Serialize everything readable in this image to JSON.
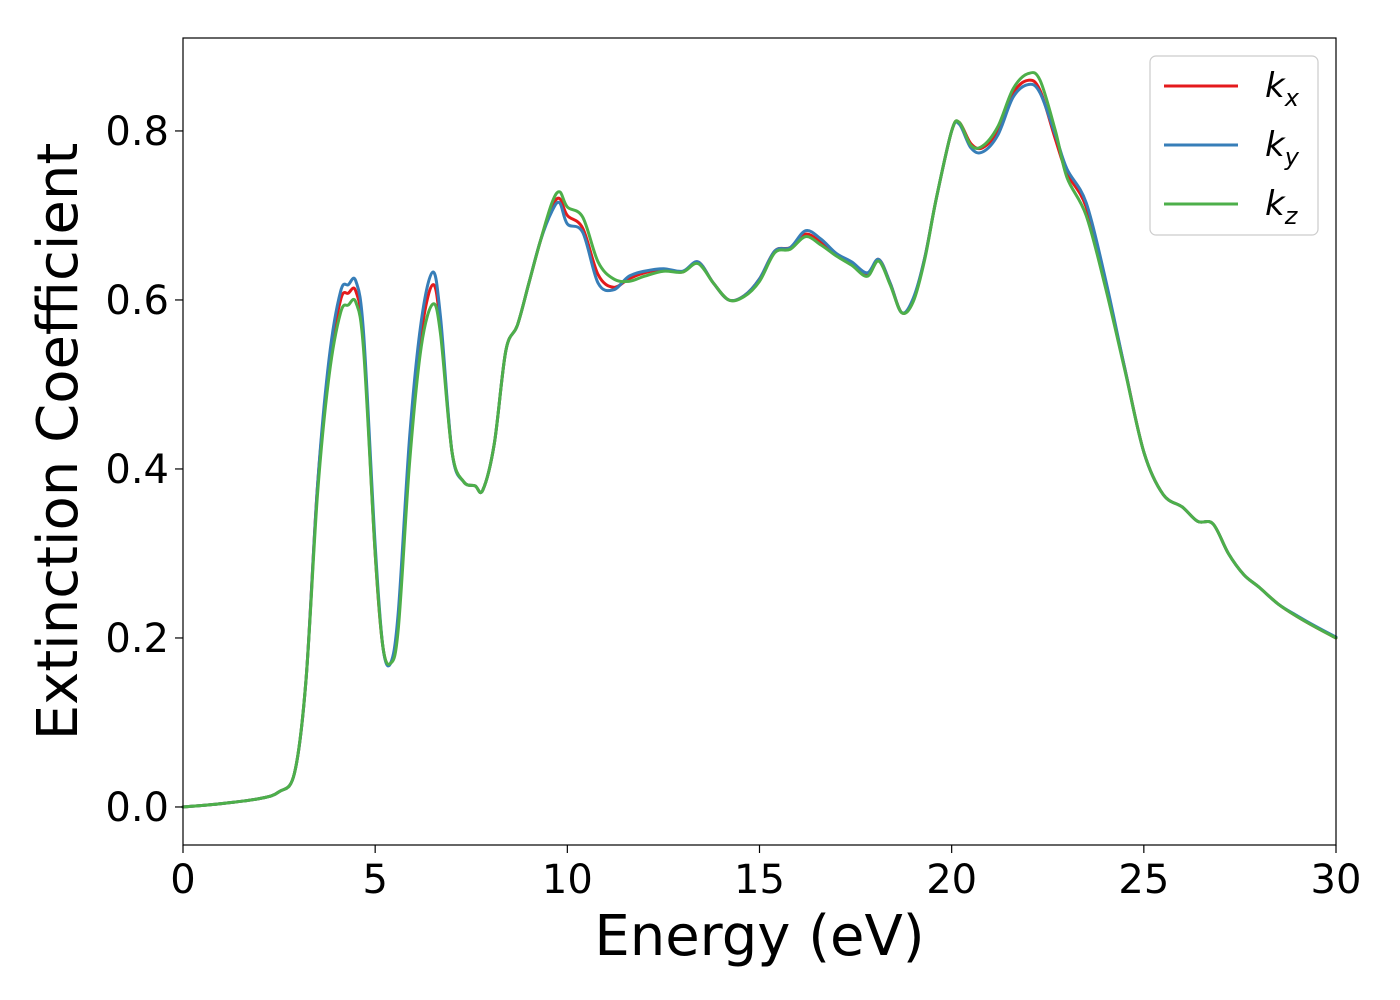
{
  "chart_data": {
    "type": "line",
    "xlabel": "Energy (eV)",
    "ylabel": "Extinction Coefficient",
    "xlim": [
      0,
      30
    ],
    "ylim": [
      -0.045,
      0.91
    ],
    "xticks": [
      0,
      5,
      10,
      15,
      20,
      25,
      30
    ],
    "xtick_labels": [
      "0",
      "5",
      "10",
      "15",
      "20",
      "25",
      "30"
    ],
    "yticks": [
      0.0,
      0.2,
      0.4,
      0.6,
      0.8
    ],
    "ytick_labels": [
      "0.0",
      "0.2",
      "0.4",
      "0.6",
      "0.8"
    ],
    "grid": false,
    "legend_position": "top-right",
    "series": [
      {
        "name": "kx",
        "legend_base": "k",
        "legend_sub": "x",
        "color": "#e41a1c",
        "x": [
          0,
          1,
          2,
          2.5,
          2.9,
          3.2,
          3.5,
          3.8,
          4.1,
          4.3,
          4.5,
          4.7,
          5.0,
          5.2,
          5.4,
          5.6,
          5.9,
          6.2,
          6.5,
          6.7,
          7.0,
          7.3,
          7.6,
          7.8,
          8.1,
          8.4,
          8.7,
          9.0,
          9.3,
          9.6,
          9.8,
          10.0,
          10.4,
          10.8,
          11.2,
          11.6,
          12.0,
          12.5,
          13.0,
          13.4,
          13.8,
          14.2,
          14.6,
          15.0,
          15.4,
          15.8,
          16.2,
          16.6,
          17.0,
          17.4,
          17.8,
          18.1,
          18.4,
          18.7,
          19.0,
          19.3,
          19.6,
          20.0,
          20.2,
          20.5,
          20.8,
          21.2,
          21.6,
          22.0,
          22.3,
          22.7,
          23.0,
          23.5,
          24.0,
          24.5,
          25.0,
          25.5,
          26.0,
          26.4,
          26.8,
          27.2,
          27.6,
          28.0,
          28.5,
          29.0,
          29.5,
          30.0
        ],
        "y": [
          0.0,
          0.004,
          0.01,
          0.018,
          0.04,
          0.15,
          0.38,
          0.52,
          0.6,
          0.608,
          0.61,
          0.55,
          0.3,
          0.19,
          0.17,
          0.22,
          0.42,
          0.56,
          0.618,
          0.57,
          0.42,
          0.385,
          0.38,
          0.375,
          0.43,
          0.54,
          0.57,
          0.62,
          0.67,
          0.71,
          0.72,
          0.7,
          0.685,
          0.63,
          0.615,
          0.625,
          0.632,
          0.636,
          0.633,
          0.645,
          0.62,
          0.6,
          0.605,
          0.625,
          0.658,
          0.662,
          0.678,
          0.668,
          0.653,
          0.643,
          0.63,
          0.648,
          0.62,
          0.585,
          0.6,
          0.65,
          0.72,
          0.8,
          0.81,
          0.785,
          0.78,
          0.8,
          0.845,
          0.86,
          0.848,
          0.79,
          0.75,
          0.71,
          0.62,
          0.52,
          0.42,
          0.37,
          0.355,
          0.338,
          0.335,
          0.3,
          0.275,
          0.26,
          0.24,
          0.225,
          0.212,
          0.2
        ]
      },
      {
        "name": "ky",
        "legend_base": "k",
        "legend_sub": "y",
        "color": "#377eb8",
        "x": [
          0,
          1,
          2,
          2.5,
          2.9,
          3.2,
          3.5,
          3.8,
          4.1,
          4.3,
          4.5,
          4.7,
          5.0,
          5.2,
          5.4,
          5.6,
          5.9,
          6.2,
          6.5,
          6.7,
          7.0,
          7.3,
          7.6,
          7.8,
          8.1,
          8.4,
          8.7,
          9.0,
          9.3,
          9.6,
          9.8,
          10.0,
          10.4,
          10.8,
          11.2,
          11.6,
          12.0,
          12.5,
          13.0,
          13.4,
          13.8,
          14.2,
          14.6,
          15.0,
          15.4,
          15.8,
          16.2,
          16.6,
          17.0,
          17.4,
          17.8,
          18.1,
          18.4,
          18.7,
          19.0,
          19.3,
          19.6,
          20.0,
          20.2,
          20.5,
          20.8,
          21.2,
          21.6,
          22.0,
          22.3,
          22.7,
          23.0,
          23.5,
          24.0,
          24.5,
          25.0,
          25.5,
          26.0,
          26.4,
          26.8,
          27.2,
          27.6,
          28.0,
          28.5,
          29.0,
          29.5,
          30.0
        ],
        "y": [
          0.0,
          0.004,
          0.01,
          0.018,
          0.04,
          0.15,
          0.38,
          0.53,
          0.61,
          0.618,
          0.622,
          0.56,
          0.31,
          0.19,
          0.17,
          0.23,
          0.44,
          0.575,
          0.633,
          0.58,
          0.42,
          0.385,
          0.38,
          0.375,
          0.43,
          0.54,
          0.57,
          0.62,
          0.67,
          0.705,
          0.715,
          0.69,
          0.68,
          0.62,
          0.612,
          0.628,
          0.634,
          0.637,
          0.634,
          0.645,
          0.62,
          0.6,
          0.605,
          0.625,
          0.658,
          0.662,
          0.682,
          0.672,
          0.655,
          0.645,
          0.632,
          0.648,
          0.62,
          0.585,
          0.602,
          0.65,
          0.72,
          0.8,
          0.808,
          0.78,
          0.775,
          0.795,
          0.84,
          0.855,
          0.845,
          0.795,
          0.755,
          0.715,
          0.625,
          0.52,
          0.42,
          0.37,
          0.355,
          0.338,
          0.335,
          0.3,
          0.275,
          0.26,
          0.24,
          0.226,
          0.213,
          0.201
        ]
      },
      {
        "name": "kz",
        "legend_base": "k",
        "legend_sub": "z",
        "color": "#4daf4a",
        "x": [
          0,
          1,
          2,
          2.5,
          2.9,
          3.2,
          3.5,
          3.8,
          4.1,
          4.3,
          4.5,
          4.7,
          5.0,
          5.2,
          5.4,
          5.6,
          5.9,
          6.2,
          6.5,
          6.7,
          7.0,
          7.3,
          7.6,
          7.8,
          8.1,
          8.4,
          8.7,
          9.0,
          9.3,
          9.6,
          9.8,
          10.0,
          10.4,
          10.8,
          11.2,
          11.6,
          12.0,
          12.5,
          13.0,
          13.4,
          13.8,
          14.2,
          14.6,
          15.0,
          15.4,
          15.8,
          16.2,
          16.6,
          17.0,
          17.4,
          17.8,
          18.1,
          18.4,
          18.7,
          19.0,
          19.3,
          19.6,
          20.0,
          20.2,
          20.5,
          20.8,
          21.2,
          21.6,
          22.0,
          22.3,
          22.7,
          23.0,
          23.5,
          24.0,
          24.5,
          25.0,
          25.5,
          26.0,
          26.4,
          26.8,
          27.2,
          27.6,
          28.0,
          28.5,
          29.0,
          29.5,
          30.0
        ],
        "y": [
          0.0,
          0.004,
          0.01,
          0.018,
          0.04,
          0.15,
          0.37,
          0.51,
          0.585,
          0.594,
          0.597,
          0.54,
          0.3,
          0.19,
          0.17,
          0.21,
          0.41,
          0.545,
          0.595,
          0.56,
          0.42,
          0.385,
          0.38,
          0.375,
          0.43,
          0.54,
          0.57,
          0.62,
          0.67,
          0.715,
          0.728,
          0.71,
          0.698,
          0.645,
          0.625,
          0.622,
          0.628,
          0.634,
          0.633,
          0.643,
          0.62,
          0.6,
          0.604,
          0.622,
          0.656,
          0.66,
          0.675,
          0.665,
          0.652,
          0.641,
          0.628,
          0.646,
          0.618,
          0.585,
          0.598,
          0.648,
          0.72,
          0.8,
          0.81,
          0.783,
          0.782,
          0.805,
          0.85,
          0.868,
          0.86,
          0.8,
          0.745,
          0.7,
          0.615,
          0.518,
          0.42,
          0.37,
          0.355,
          0.338,
          0.335,
          0.3,
          0.275,
          0.26,
          0.24,
          0.225,
          0.212,
          0.2
        ]
      }
    ]
  }
}
